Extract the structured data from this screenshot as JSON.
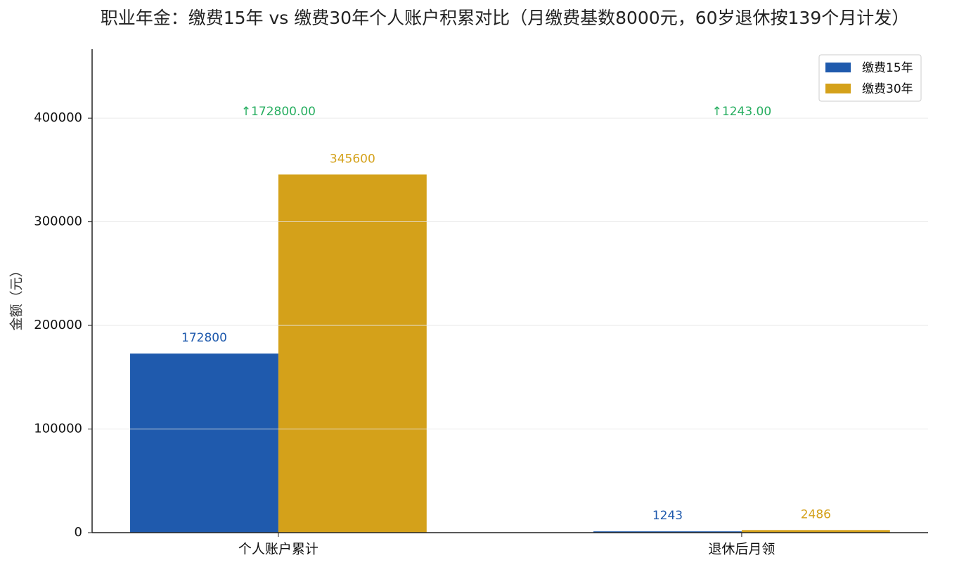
{
  "chart_data": {
    "type": "bar",
    "title": "职业年金：缴费15年 vs 缴费30年个人账户积累对比（月缴费基数8000元，60岁退休按139个月计发）",
    "y_label": "金额（元）",
    "categories": [
      "个人账户累计",
      "退休后月领"
    ],
    "series": [
      {
        "name": "缴费15年",
        "color": "#1f5aad",
        "values": [
          172800,
          1243
        ]
      },
      {
        "name": "缴费30年",
        "color": "#d4a11a",
        "values": [
          345600,
          2486
        ]
      }
    ],
    "annotations": [
      "↑172800.00",
      "↑1243.00"
    ],
    "annotation_color": "#27ae60",
    "ylim": [
      0,
      466560
    ],
    "yticks": [
      0,
      100000,
      200000,
      300000,
      400000
    ],
    "grid": true,
    "legend": "upper right"
  }
}
